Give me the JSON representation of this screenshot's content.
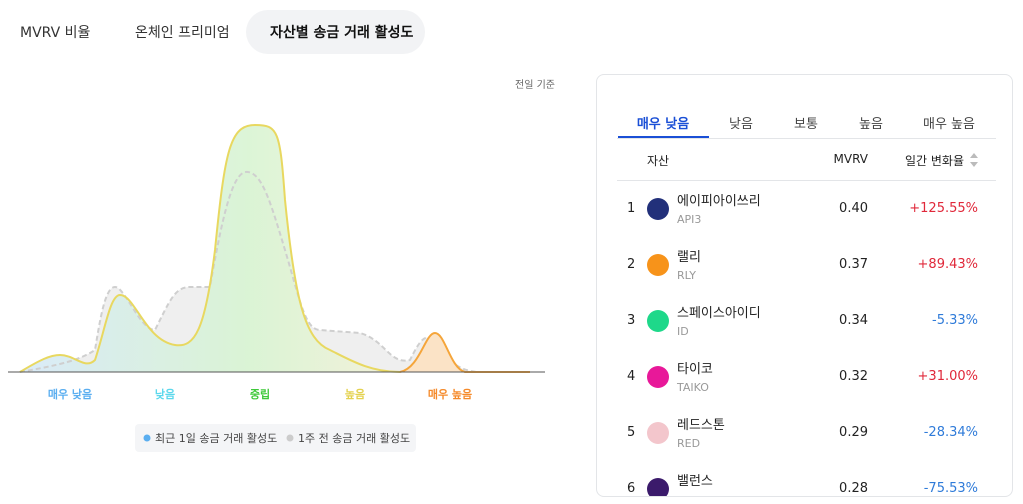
{
  "tabs": [
    "MVRV 비율",
    "온체인 프리미엄",
    "자산별 송금 거래 활성도"
  ],
  "basis_note": "전일 기준",
  "chart": {
    "zone_labels": [
      "매우 낮음",
      "낮음",
      "중립",
      "높음",
      "매우 높음"
    ],
    "legend": [
      "최근 1일 송금 거래 활성도",
      "1주 전 송금 거래 활성도"
    ]
  },
  "panel": {
    "tabs": [
      "매우 낮음",
      "낮음",
      "보통",
      "높음",
      "매우 높음"
    ],
    "columns": [
      "자산",
      "MVRV",
      "일간 변화율"
    ],
    "rows": [
      {
        "rank": "1",
        "name": "에이피아이쓰리",
        "ticker": "API3",
        "mvrv": "0.40",
        "change": "+125.55%"
      },
      {
        "rank": "2",
        "name": "랠리",
        "ticker": "RLY",
        "mvrv": "0.37",
        "change": "+89.43%"
      },
      {
        "rank": "3",
        "name": "스페이스아이디",
        "ticker": "ID",
        "mvrv": "0.34",
        "change": "-5.33%"
      },
      {
        "rank": "4",
        "name": "타이코",
        "ticker": "TAIKO",
        "mvrv": "0.32",
        "change": "+31.00%"
      },
      {
        "rank": "5",
        "name": "레드스톤",
        "ticker": "RED",
        "mvrv": "0.29",
        "change": "-28.34%"
      },
      {
        "rank": "6",
        "name": "밸런스",
        "mvrv": "0.28",
        "change": "-75.53%"
      }
    ]
  }
}
